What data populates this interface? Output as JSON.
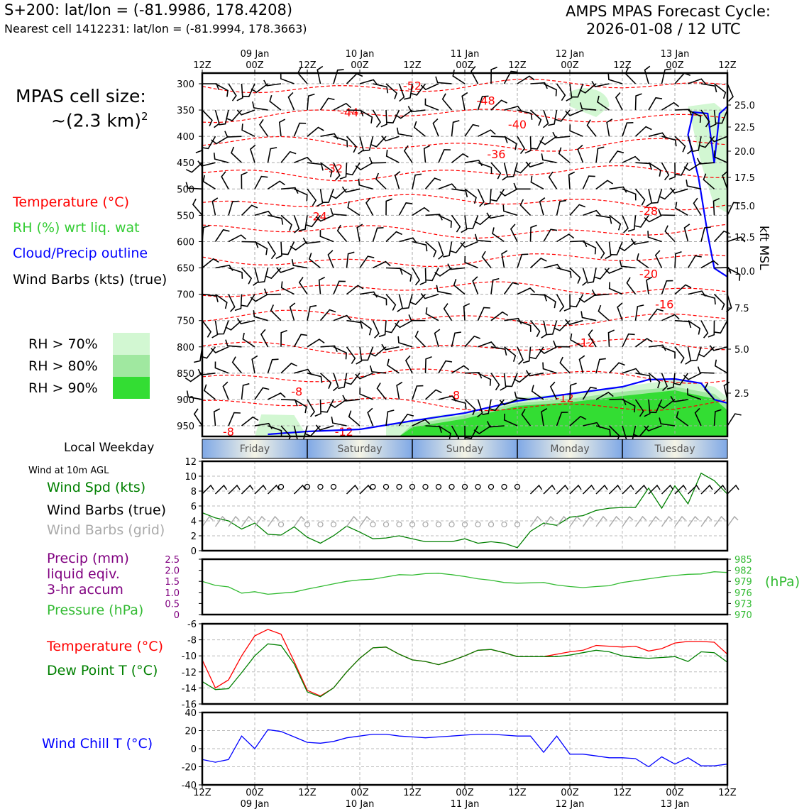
{
  "header": {
    "title_left": "S+200: lat/lon = (-81.9986, 178.4208)",
    "subtitle_left": "Nearest cell 1412231: lat/lon = (-81.9994, 178.3663)",
    "title_right_1": "AMPS MPAS Forecast Cycle:",
    "title_right_2": "2026-01-08 / 12 UTC"
  },
  "legend": {
    "cell_size_1": "MPAS cell size:",
    "cell_size_2": "~(2.3 km)",
    "cell_size_sup": "2",
    "temperature": "Temperature (°C)",
    "rh": "RH (%) wrt liq. wat",
    "cloud": "Cloud/Precip outline",
    "wind": "Wind Barbs (kts) (true)",
    "rh70": "RH > 70%",
    "rh80": "RH > 80%",
    "rh90": "RH > 90%"
  },
  "colors": {
    "temperature": "#ff0000",
    "rh": "#33cc33",
    "cloud": "#0000ff",
    "rh70": "#d2f7d2",
    "rh80": "#a0e8a0",
    "rh90": "#33dd33",
    "pressure": "#33bb33",
    "precip": "#800080",
    "dewpoint": "#008000",
    "windchill": "#0000ff",
    "grid_barb": "#aaaaaa"
  },
  "time_axis": {
    "hour_labels": [
      "12Z",
      "00Z",
      "12Z",
      "00Z",
      "12Z",
      "00Z",
      "12Z",
      "00Z",
      "12Z",
      "00Z",
      "12Z"
    ],
    "date_labels": [
      "09 Jan",
      "10 Jan",
      "11 Jan",
      "12 Jan",
      "13 Jan"
    ]
  },
  "weekday_strip": {
    "title": "Local Weekday",
    "days": [
      "Friday",
      "Saturday",
      "Sunday",
      "Monday",
      "Tuesday"
    ]
  },
  "panels": {
    "wind10m_title": "Wind at 10m AGL",
    "wind_spd": "Wind Spd (kts)",
    "wind_barbs_true": "Wind Barbs (true)",
    "wind_barbs_grid": "Wind Barbs (grid)",
    "precip_1": "Precip (mm)",
    "precip_2": "liquid eqiv.",
    "precip_3": "3-hr accum",
    "pressure": "Pressure (hPa)",
    "pressure_unit": "(hPa)",
    "temp": "Temperature (°C)",
    "dewpoint": "Dew Point T (°C)",
    "windchill": "Wind Chill T (°C)"
  },
  "chart_data": [
    {
      "type": "time-height cross section",
      "y_left_ticks_hPa": [
        300,
        350,
        400,
        450,
        500,
        550,
        600,
        650,
        700,
        750,
        800,
        850,
        900,
        950
      ],
      "y_right_label": "kft MSL",
      "y_right_ticks_kft": [
        "25.0",
        "22.5",
        "20.0",
        "17.5",
        "15.0",
        "12.5",
        "10.0",
        "7.5",
        "5.0",
        "2.5"
      ],
      "temperature_contour_labels": [
        {
          "label": "-52",
          "t": 4.0,
          "p": 305
        },
        {
          "label": "-48",
          "t": 5.4,
          "p": 333
        },
        {
          "label": "-44",
          "t": 2.8,
          "p": 355
        },
        {
          "label": "-40",
          "t": 6.0,
          "p": 378
        },
        {
          "label": "-36",
          "t": 5.6,
          "p": 435
        },
        {
          "label": "-32",
          "t": 2.5,
          "p": 462
        },
        {
          "label": "-28",
          "t": 8.5,
          "p": 543
        },
        {
          "label": "-24",
          "t": 2.2,
          "p": 553
        },
        {
          "label": "-20",
          "t": 8.5,
          "p": 662
        },
        {
          "label": "-16",
          "t": 8.8,
          "p": 720
        },
        {
          "label": "-12",
          "t": 7.3,
          "p": 793
        },
        {
          "label": "-8",
          "t": 1.8,
          "p": 886
        },
        {
          "label": "-8",
          "t": 4.8,
          "p": 893
        },
        {
          "label": "-12",
          "t": 6.9,
          "p": 898
        },
        {
          "label": "-12",
          "t": 2.7,
          "p": 962
        },
        {
          "label": "-8",
          "t": 0.5,
          "p": 962
        }
      ],
      "temperature_contour_levels": [
        -52,
        -48,
        -44,
        -40,
        -36,
        -32,
        -28,
        -24,
        -20,
        -16,
        -12,
        -8
      ]
    },
    {
      "type": "line",
      "title": "Wind at 10m AGL",
      "ylim": [
        0,
        12
      ],
      "yticks": [
        0,
        2,
        4,
        6,
        8,
        10,
        12
      ],
      "series": [
        {
          "name": "Wind Spd (kts)",
          "values": [
            5.1,
            4.4,
            4.0,
            2.9,
            3.7,
            2.2,
            2.1,
            3.2,
            1.8,
            1.0,
            2.0,
            3.3,
            2.5,
            1.6,
            1.7,
            2.0,
            1.6,
            1.2,
            1.2,
            1.2,
            1.6,
            1.0,
            1.2,
            1.0,
            0.4,
            2.6,
            3.7,
            3.4,
            4.5,
            4.7,
            5.4,
            5.7,
            5.8,
            5.8,
            8.4,
            5.7,
            8.7,
            6.3,
            10.4,
            9.4,
            7.6
          ]
        }
      ]
    },
    {
      "type": "line",
      "ylim_precip": [
        0,
        2.5
      ],
      "yticks_precip": [
        "2.5",
        "2.0",
        "1.5",
        "1.0",
        "0.5",
        "0"
      ],
      "ylim_pressure": [
        970,
        985
      ],
      "yticks_pressure": [
        "985",
        "982",
        "979",
        "976",
        "973",
        "970"
      ],
      "series": [
        {
          "name": "Pressure (hPa)",
          "values": [
            979.0,
            977.9,
            977.5,
            975.8,
            976.2,
            975.5,
            975.8,
            976.1,
            976.9,
            977.6,
            978.3,
            979.0,
            979.4,
            979.6,
            980.2,
            980.8,
            980.7,
            981.1,
            981.2,
            980.8,
            980.3,
            979.7,
            979.3,
            978.7,
            978.5,
            978.6,
            978.7,
            978.0,
            977.6,
            977.3,
            977.6,
            977.8,
            978.7,
            979.2,
            979.7,
            980.2,
            980.6,
            980.9,
            981.0,
            981.6,
            981.4
          ]
        }
      ]
    },
    {
      "type": "line",
      "ylim": [
        -16,
        -6
      ],
      "yticks": [
        -6,
        -8,
        -10,
        -12,
        -14,
        -16
      ],
      "series": [
        {
          "name": "Temperature (°C)",
          "values": [
            -10.5,
            -14.0,
            -13.0,
            -10.0,
            -7.5,
            -6.7,
            -7.3,
            -10.7,
            -14.3,
            -15.0,
            -14.0,
            -12.0,
            -10.3,
            -9.0,
            -8.9,
            -9.8,
            -10.5,
            -10.7,
            -11.1,
            -10.6,
            -10.0,
            -9.3,
            -9.2,
            -9.6,
            -10.1,
            -10.1,
            -10.1,
            -9.8,
            -9.5,
            -9.3,
            -8.7,
            -8.8,
            -8.9,
            -8.8,
            -9.4,
            -9.1,
            -8.4,
            -8.2,
            -8.2,
            -8.3,
            -9.8
          ]
        },
        {
          "name": "Dew Point T (°C)",
          "values": [
            -13.2,
            -14.2,
            -14.1,
            -12.1,
            -10.0,
            -8.5,
            -8.7,
            -11.0,
            -14.5,
            -15.1,
            -14.0,
            -12.0,
            -10.3,
            -9.0,
            -8.9,
            -9.8,
            -10.5,
            -10.7,
            -11.1,
            -10.6,
            -10.0,
            -9.3,
            -9.2,
            -9.6,
            -10.1,
            -10.1,
            -10.1,
            -10.1,
            -9.9,
            -9.6,
            -9.3,
            -9.5,
            -10.0,
            -10.2,
            -10.3,
            -10.2,
            -10.1,
            -10.7,
            -9.5,
            -9.6,
            -10.8
          ]
        }
      ]
    },
    {
      "type": "line",
      "ylim": [
        -40,
        40
      ],
      "yticks": [
        40,
        20,
        0,
        -20,
        -40
      ],
      "series": [
        {
          "name": "Wind Chill T (°C)",
          "values": [
            -12,
            -15,
            -12,
            14,
            0,
            21,
            19,
            13,
            7,
            6,
            8,
            12,
            14,
            16,
            16,
            14,
            13,
            12,
            13,
            14,
            15,
            16,
            16,
            15,
            14,
            14,
            -4,
            14,
            -6,
            -6,
            -8,
            -10,
            -10,
            -11,
            -20,
            -9,
            -17,
            -10,
            -19,
            -19,
            -17
          ]
        }
      ]
    }
  ]
}
